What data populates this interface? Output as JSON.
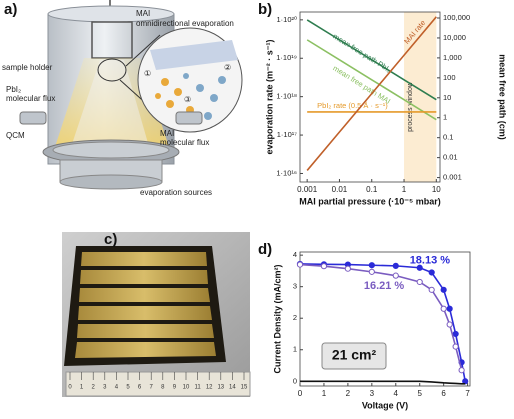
{
  "panel_letters": [
    "a)",
    "b)",
    "c)",
    "d)"
  ],
  "panel_a": {
    "labels": {
      "mai_evaporation": "MAI",
      "mai_evaporation_2": "omnidirectional evaporation",
      "sample_holder": "sample holder",
      "pbi2_flux": "PbI₂",
      "pbi2_flux_2": "molecular flux",
      "qcm": "QCM",
      "mai_flux": "MAI",
      "mai_flux_2": "molecular flux",
      "sources": "evaporation sources"
    },
    "circled": [
      "①",
      "②",
      "③"
    ]
  },
  "panel_c": {
    "ruler_labels": [
      "0",
      "1",
      "2",
      "3",
      "4",
      "5",
      "6",
      "7",
      "8",
      "9",
      "10",
      "11",
      "12",
      "13",
      "14",
      "15"
    ]
  },
  "chart_data": [
    {
      "type": "line",
      "log_x": true,
      "log_y": true,
      "xlabel": "MAI partial pressure (·10⁻⁵ mbar)",
      "ylabel": "evaporation rate (m⁻² · s⁻¹)",
      "y2label": "mean free path (cm)",
      "x": [
        0.001,
        0.01,
        0.1,
        1,
        10
      ],
      "xlim": [
        0.0006,
        13
      ],
      "xticks": [
        0.001,
        0.01,
        0.1,
        1,
        10
      ],
      "ylim": [
        6000000000000000.0,
        1.6e+20
      ],
      "yticks": [
        {
          "value": 1e+16,
          "label": "1·10¹⁶"
        },
        {
          "value": 1e+17,
          "label": "1·10¹⁷"
        },
        {
          "value": 1e+18,
          "label": "1·10¹⁸"
        },
        {
          "value": 1e+19,
          "label": "1·10¹⁹"
        },
        {
          "value": 1e+20,
          "label": "1·10²⁰"
        }
      ],
      "y2lim": [
        0.0006,
        200000
      ],
      "y2ticks": [
        0.001,
        0.01,
        0.1,
        1,
        10,
        100,
        {
          "value": 1000,
          "label": "1,000"
        },
        {
          "value": 10000,
          "label": "10,000"
        },
        {
          "value": 100000,
          "label": "100,000"
        }
      ],
      "shaded_x": [
        1,
        10
      ],
      "shaded_label": "process window",
      "series": [
        {
          "name": "mean free path PbI₂",
          "color": "#2e7d4f",
          "axis": "y2",
          "values": [
            80000,
            8000,
            800,
            80,
            8
          ]
        },
        {
          "name": "mean free path MAI",
          "color": "#8cc063",
          "axis": "y2",
          "values": [
            8000,
            800,
            80,
            8,
            0.8
          ]
        },
        {
          "name": "PbI₂ rate (0.5 Å · s⁻¹)",
          "color": "#e59a2a",
          "values": [
            4e+17,
            4e+17,
            4e+17,
            4e+17,
            4e+17
          ]
        },
        {
          "name": "MAI rate",
          "color": "#c0602a",
          "values": [
            1.2e+16,
            1.2e+17,
            1.2e+18,
            1.2e+19,
            1.2e+20
          ]
        }
      ]
    },
    {
      "type": "line",
      "xlabel": "Voltage (V)",
      "ylabel": "Current Density (mA/cm²)",
      "annotation": "21 cm²",
      "x": [
        0,
        1,
        2,
        3,
        4,
        5,
        5.5,
        6,
        6.25,
        6.5,
        6.75,
        6.9
      ],
      "xlim": [
        0,
        7.1
      ],
      "xticks": [
        0,
        1,
        2,
        3,
        4,
        5,
        6,
        7
      ],
      "ylim": [
        -0.15,
        4.1
      ],
      "yticks": [
        0,
        1,
        2,
        3,
        4
      ],
      "series": [
        {
          "name": "18.13 %",
          "color": "#2b2bd8",
          "marker": "filled",
          "values": [
            3.72,
            3.71,
            3.7,
            3.68,
            3.66,
            3.6,
            3.45,
            2.9,
            2.3,
            1.5,
            0.6,
            0
          ]
        },
        {
          "name": "16.21 %",
          "color": "#7a5cc0",
          "marker": "open",
          "values": [
            3.7,
            3.65,
            3.57,
            3.47,
            3.35,
            3.15,
            2.9,
            2.3,
            1.8,
            1.1,
            0.35,
            null
          ]
        },
        {
          "color": "#111111",
          "marker": "none",
          "values": [
            0,
            0,
            0,
            0,
            0,
            0,
            -0.02,
            -0.05,
            -0.06,
            -0.07,
            -0.08,
            -0.08
          ]
        }
      ]
    }
  ]
}
